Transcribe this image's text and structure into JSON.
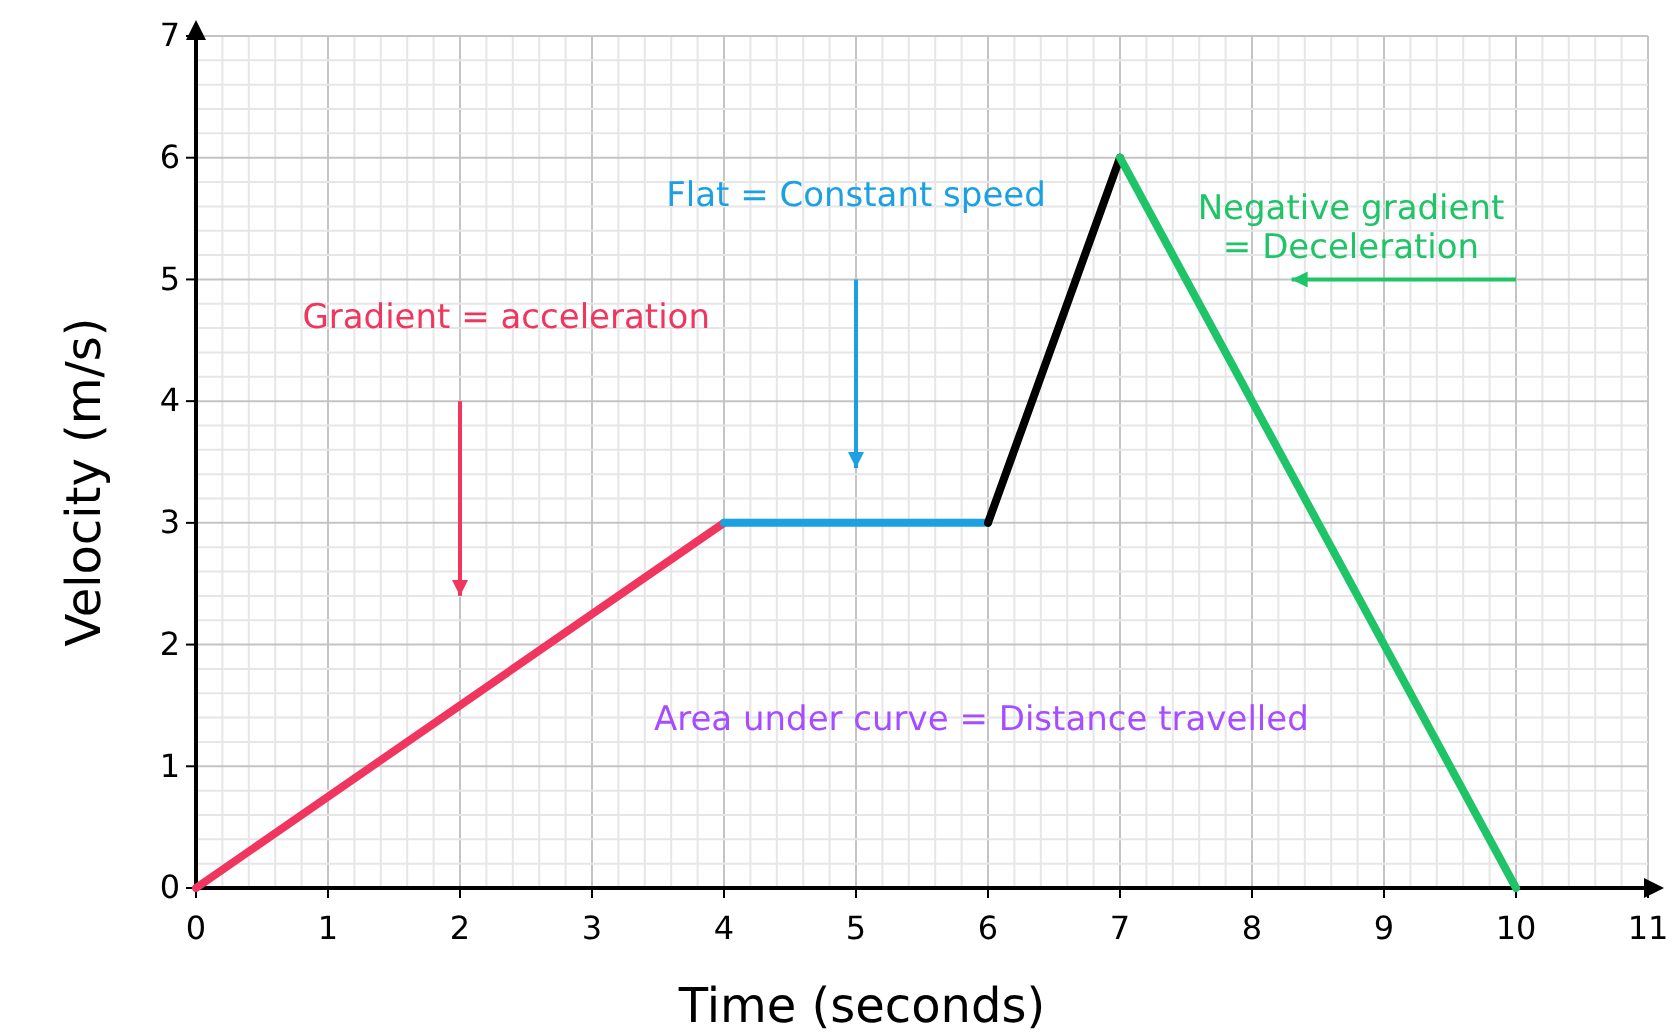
{
  "chart_data": {
    "type": "line",
    "xlabel": "Time (seconds)",
    "ylabel": "Velocity (m/s)",
    "xlim": [
      0,
      11
    ],
    "ylim": [
      0,
      7
    ],
    "xticks": [
      0,
      1,
      2,
      3,
      4,
      5,
      6,
      7,
      8,
      9,
      10,
      11
    ],
    "yticks": [
      0,
      1,
      2,
      3,
      4,
      5,
      6,
      7
    ],
    "grid": true,
    "marker": "none",
    "line_style": "solid",
    "series": [
      {
        "color": "#f0355f",
        "x": [
          0,
          4
        ],
        "values": [
          0,
          3
        ]
      },
      {
        "color": "#1ba1e2",
        "x": [
          4,
          6
        ],
        "values": [
          3,
          3
        ]
      },
      {
        "color": "#000000",
        "x": [
          6,
          7
        ],
        "values": [
          3,
          6
        ]
      },
      {
        "color": "#1ec467",
        "x": [
          7,
          10
        ],
        "values": [
          6,
          0
        ]
      }
    ],
    "annotations": [
      "Gradient = acceleration",
      "Flat = Constant speed",
      "Negative gradient\n= Deceleration",
      "Area under curve = Distance travelled"
    ]
  }
}
